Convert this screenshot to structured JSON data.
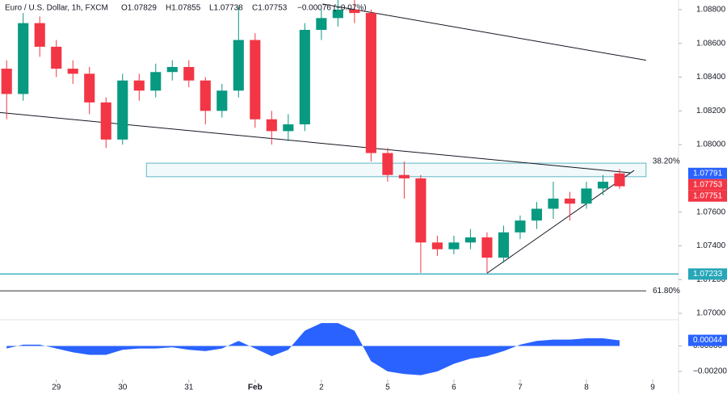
{
  "chart_data": {
    "type": "candlestick",
    "title": "Euro / U.S. Dollar, 1h, FXCM",
    "ohlc_header": {
      "open": "O1.07829",
      "high": "H1.07855",
      "low": "L1.07738",
      "close": "C1.07753",
      "change": "−0.00076 (−0.07%)"
    },
    "x": [
      -0.75,
      -0.5,
      -0.25,
      0,
      0.25,
      0.5,
      0.75,
      1,
      1.25,
      1.5,
      1.75,
      2,
      2.25,
      2.5,
      2.75,
      3,
      3.25,
      3.5,
      3.75,
      4,
      4.25,
      4.5,
      4.75,
      5,
      5.25,
      5.5,
      5.75,
      6,
      6.25,
      6.5,
      6.75,
      7,
      7.25,
      7.5,
      7.75,
      8,
      8.25,
      8.5
    ],
    "open": [
      1.0845,
      1.083,
      1.0872,
      1.0858,
      1.0845,
      1.0842,
      1.0825,
      1.0803,
      1.0838,
      1.0832,
      1.0843,
      1.0846,
      1.0838,
      1.082,
      1.0832,
      1.0862,
      1.0815,
      1.0808,
      1.0812,
      1.0868,
      1.0875,
      1.088,
      1.0878,
      1.0795,
      1.0782,
      1.078,
      1.0742,
      1.0738,
      1.0742,
      1.0745,
      1.0733,
      1.0748,
      1.0755,
      1.0762,
      1.0768,
      1.0765,
      1.0774,
      1.07829
    ],
    "high": [
      1.085,
      1.0878,
      1.0876,
      1.0862,
      1.085,
      1.0846,
      1.0828,
      1.0842,
      1.0842,
      1.0848,
      1.085,
      1.085,
      1.084,
      1.0836,
      1.0882,
      1.0866,
      1.082,
      1.0818,
      1.0872,
      1.088,
      1.0886,
      1.0886,
      1.088,
      1.0798,
      1.079,
      1.0782,
      1.0746,
      1.0746,
      1.075,
      1.0748,
      1.0752,
      1.0758,
      1.0766,
      1.0778,
      1.0772,
      1.0778,
      1.0782,
      1.07855
    ],
    "low": [
      1.0815,
      1.0826,
      1.0852,
      1.084,
      1.0836,
      1.0818,
      1.0798,
      1.08,
      1.0826,
      1.0828,
      1.0838,
      1.0834,
      1.0812,
      1.0816,
      1.0828,
      1.081,
      1.08,
      1.0802,
      1.0808,
      1.0862,
      1.087,
      1.0872,
      1.079,
      1.0778,
      1.0768,
      1.0724,
      1.0734,
      1.0735,
      1.0738,
      1.0724,
      1.073,
      1.0744,
      1.075,
      1.0756,
      1.0755,
      1.0762,
      1.077,
      1.07738
    ],
    "close": [
      1.083,
      1.0872,
      1.0858,
      1.0845,
      1.0842,
      1.0825,
      1.0803,
      1.0838,
      1.0832,
      1.0843,
      1.0846,
      1.0838,
      1.082,
      1.0832,
      1.0862,
      1.0815,
      1.0808,
      1.0812,
      1.0868,
      1.0875,
      1.088,
      1.0878,
      1.0795,
      1.0782,
      1.078,
      1.0742,
      1.0738,
      1.0742,
      1.0745,
      1.0733,
      1.0748,
      1.0755,
      1.0762,
      1.0768,
      1.0765,
      1.0774,
      1.0778,
      1.07753
    ],
    "up_color": "#089981",
    "down_color": "#f23645",
    "xlim": [
      -0.85,
      9.39
    ],
    "xticks": [
      {
        "value": 0,
        "label": "29"
      },
      {
        "value": 1,
        "label": "30"
      },
      {
        "value": 2,
        "label": "31"
      },
      {
        "value": 3,
        "label": "Feb"
      },
      {
        "value": 4,
        "label": "2"
      },
      {
        "value": 5,
        "label": "5"
      },
      {
        "value": 6,
        "label": "6"
      },
      {
        "value": 7,
        "label": "7"
      },
      {
        "value": 8,
        "label": "8"
      },
      {
        "value": 9,
        "label": "9"
      }
    ],
    "ylim": [
      1.06967,
      1.08857
    ],
    "yticks": [
      {
        "value": 1.088,
        "label": "1.08800"
      },
      {
        "value": 1.086,
        "label": "1.08600"
      },
      {
        "value": 1.084,
        "label": "1.08400"
      },
      {
        "value": 1.082,
        "label": "1.08200"
      },
      {
        "value": 1.08,
        "label": "1.08000"
      },
      {
        "value": 1.076,
        "label": "1.07600"
      },
      {
        "value": 1.074,
        "label": "1.07400"
      },
      {
        "value": 1.072,
        "label": "1.07200"
      },
      {
        "value": 1.07,
        "label": "1.07000"
      }
    ],
    "trendlines": [
      {
        "x": [
          4.02,
          8.9
        ],
        "y": [
          1.08833,
          1.085
        ]
      },
      {
        "x": [
          -0.85,
          8.66
        ],
        "y": [
          1.0819,
          1.07833
        ]
      },
      {
        "x": [
          6.5,
          8.72
        ],
        "y": [
          1.07238,
          1.07847
        ]
      }
    ],
    "support": {
      "value": 1.07233,
      "label": "1.07233",
      "color": "#26a6b8"
    },
    "fib_levels": [
      {
        "label": "38.20%",
        "value": 1.0789,
        "bottom": 1.0781,
        "x": [
          1.36,
          8.9
        ],
        "color": "#5fb8c4"
      },
      {
        "label": "61.80%",
        "value": 1.07133,
        "color": "#333333"
      }
    ],
    "price_tags": [
      {
        "value": 1.07791,
        "label": "1.07791",
        "color": "#2962ff"
      },
      {
        "value": 1.07753,
        "label": "1.07753",
        "color": "#f23645"
      },
      {
        "value": 1.07751,
        "label": "1.07751",
        "color": "#f23645"
      }
    ],
    "oscillator": {
      "values": [
        -0.0002,
        0.0001,
        0.0001,
        -0.0002,
        -0.0005,
        -0.0007,
        -0.0007,
        -0.0003,
        -0.0002,
        -0.0002,
        -0.0001,
        -0.0003,
        -0.0004,
        -0.0002,
        0.0004,
        -0.0002,
        -0.0008,
        -0.0003,
        0.0012,
        0.0018,
        0.0018,
        0.0012,
        -0.0012,
        -0.002,
        -0.0022,
        -0.0023,
        -0.002,
        -0.0014,
        -0.001,
        -0.0008,
        -0.0004,
        0.0001,
        0.0004,
        0.0005,
        0.0005,
        0.0006,
        0.0006,
        0.00044
      ],
      "color": "#2962ff",
      "ylim": [
        -0.00263,
        0.00206
      ],
      "yticks": [
        {
          "value": 0,
          "label": "0.00000"
        },
        {
          "value": -0.002,
          "label": "−0.00200"
        }
      ],
      "last": {
        "value": 0.00044,
        "label": "0.00044"
      }
    }
  }
}
